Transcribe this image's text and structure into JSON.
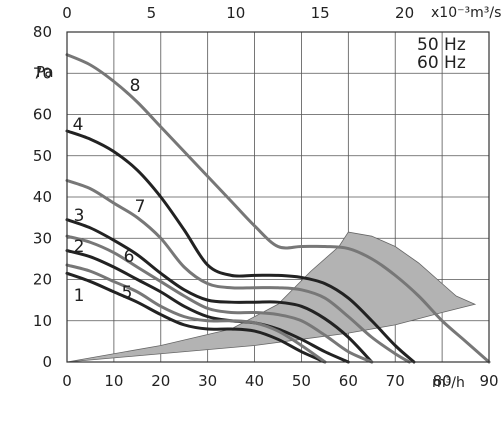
{
  "chart_data": {
    "type": "line",
    "title": "",
    "xlabel": "m³/h",
    "ylabel": "Pa",
    "xlim": [
      0,
      90
    ],
    "ylim": [
      0,
      80
    ],
    "x_ticks": [
      "0",
      "10",
      "20",
      "30",
      "40",
      "50",
      "60",
      "70",
      "80",
      "90"
    ],
    "y_ticks": [
      "0",
      "10",
      "20",
      "30",
      "40",
      "50",
      "60",
      "70",
      "80"
    ],
    "secondary_x": {
      "label": "x10⁻³m³/s",
      "ticks": [
        "0",
        "5",
        "10",
        "15",
        "20"
      ],
      "tick_values_m3h": [
        0,
        18,
        36,
        54,
        72
      ]
    },
    "frequency_labels": [
      "50 Hz",
      "60 Hz"
    ],
    "grid": true,
    "series": [
      {
        "name": "1",
        "color": "#222222",
        "x": [
          0,
          5,
          10,
          15,
          20,
          25,
          30,
          35,
          40,
          45,
          50,
          55
        ],
        "y": [
          21.5,
          19.5,
          17,
          14.5,
          11.5,
          9,
          8,
          8,
          7.5,
          5.5,
          2.5,
          0
        ]
      },
      {
        "name": "2",
        "color": "#222222",
        "x": [
          0,
          5,
          10,
          15,
          20,
          25,
          30,
          35,
          40,
          45,
          50,
          55,
          60
        ],
        "y": [
          27,
          25.5,
          23,
          20,
          17,
          13.5,
          11,
          10,
          9.5,
          8,
          5.5,
          2.5,
          0
        ]
      },
      {
        "name": "3",
        "color": "#222222",
        "x": [
          0,
          5,
          10,
          15,
          20,
          25,
          30,
          35,
          40,
          45,
          50,
          55,
          60,
          65
        ],
        "y": [
          34.5,
          32.5,
          29.5,
          26,
          21.5,
          17.5,
          15,
          14.5,
          14.5,
          14.5,
          13.5,
          10.5,
          6,
          0
        ]
      },
      {
        "name": "4",
        "color": "#222222",
        "x": [
          0,
          5,
          10,
          15,
          20,
          25,
          30,
          35,
          40,
          45,
          50,
          55,
          60,
          65,
          70,
          74
        ],
        "y": [
          56,
          54,
          51,
          46.5,
          40,
          32,
          23.5,
          21,
          21,
          21,
          20.5,
          19,
          15.5,
          10,
          4,
          0
        ]
      },
      {
        "name": "5",
        "color": "#777777",
        "x": [
          0,
          5,
          10,
          15,
          20,
          25,
          30,
          35,
          40,
          45,
          50,
          55
        ],
        "y": [
          23.5,
          22,
          19.5,
          17,
          13.5,
          11,
          10,
          10,
          9.5,
          7.5,
          4,
          0
        ]
      },
      {
        "name": "6",
        "color": "#777777",
        "x": [
          0,
          5,
          10,
          15,
          20,
          25,
          30,
          35,
          40,
          45,
          50,
          55,
          60,
          65
        ],
        "y": [
          30.5,
          29,
          26.5,
          23,
          19.5,
          16,
          13,
          12,
          12,
          11.5,
          10,
          6.5,
          2.5,
          0
        ]
      },
      {
        "name": "7",
        "color": "#777777",
        "x": [
          0,
          5,
          10,
          15,
          20,
          25,
          30,
          35,
          40,
          45,
          50,
          55,
          60,
          65,
          70,
          73
        ],
        "y": [
          44,
          42,
          38.5,
          35,
          30,
          23,
          19,
          18,
          18,
          18,
          17.5,
          15.5,
          11,
          6,
          2,
          0
        ]
      },
      {
        "name": "8",
        "color": "#777777",
        "x": [
          0,
          5,
          10,
          15,
          20,
          25,
          30,
          35,
          40,
          45,
          50,
          55,
          60,
          65,
          70,
          75,
          80,
          85,
          90
        ],
        "y": [
          74.5,
          72,
          68,
          63,
          57,
          51,
          45,
          39,
          33,
          28,
          28,
          28,
          27.5,
          25,
          21,
          16,
          10,
          5,
          0
        ]
      }
    ],
    "shaded_region": {
      "color": "#b3b3b3",
      "x": [
        0,
        20,
        35,
        45,
        52,
        58,
        60,
        65,
        70,
        75,
        80,
        83,
        87,
        80,
        70,
        60,
        50,
        40,
        30,
        20,
        10,
        0
      ],
      "y": [
        0,
        4,
        8,
        14,
        22,
        28,
        31.5,
        30.5,
        28,
        24,
        19,
        16,
        14,
        12,
        9,
        7,
        5.5,
        4,
        3,
        2,
        1,
        0
      ]
    }
  }
}
